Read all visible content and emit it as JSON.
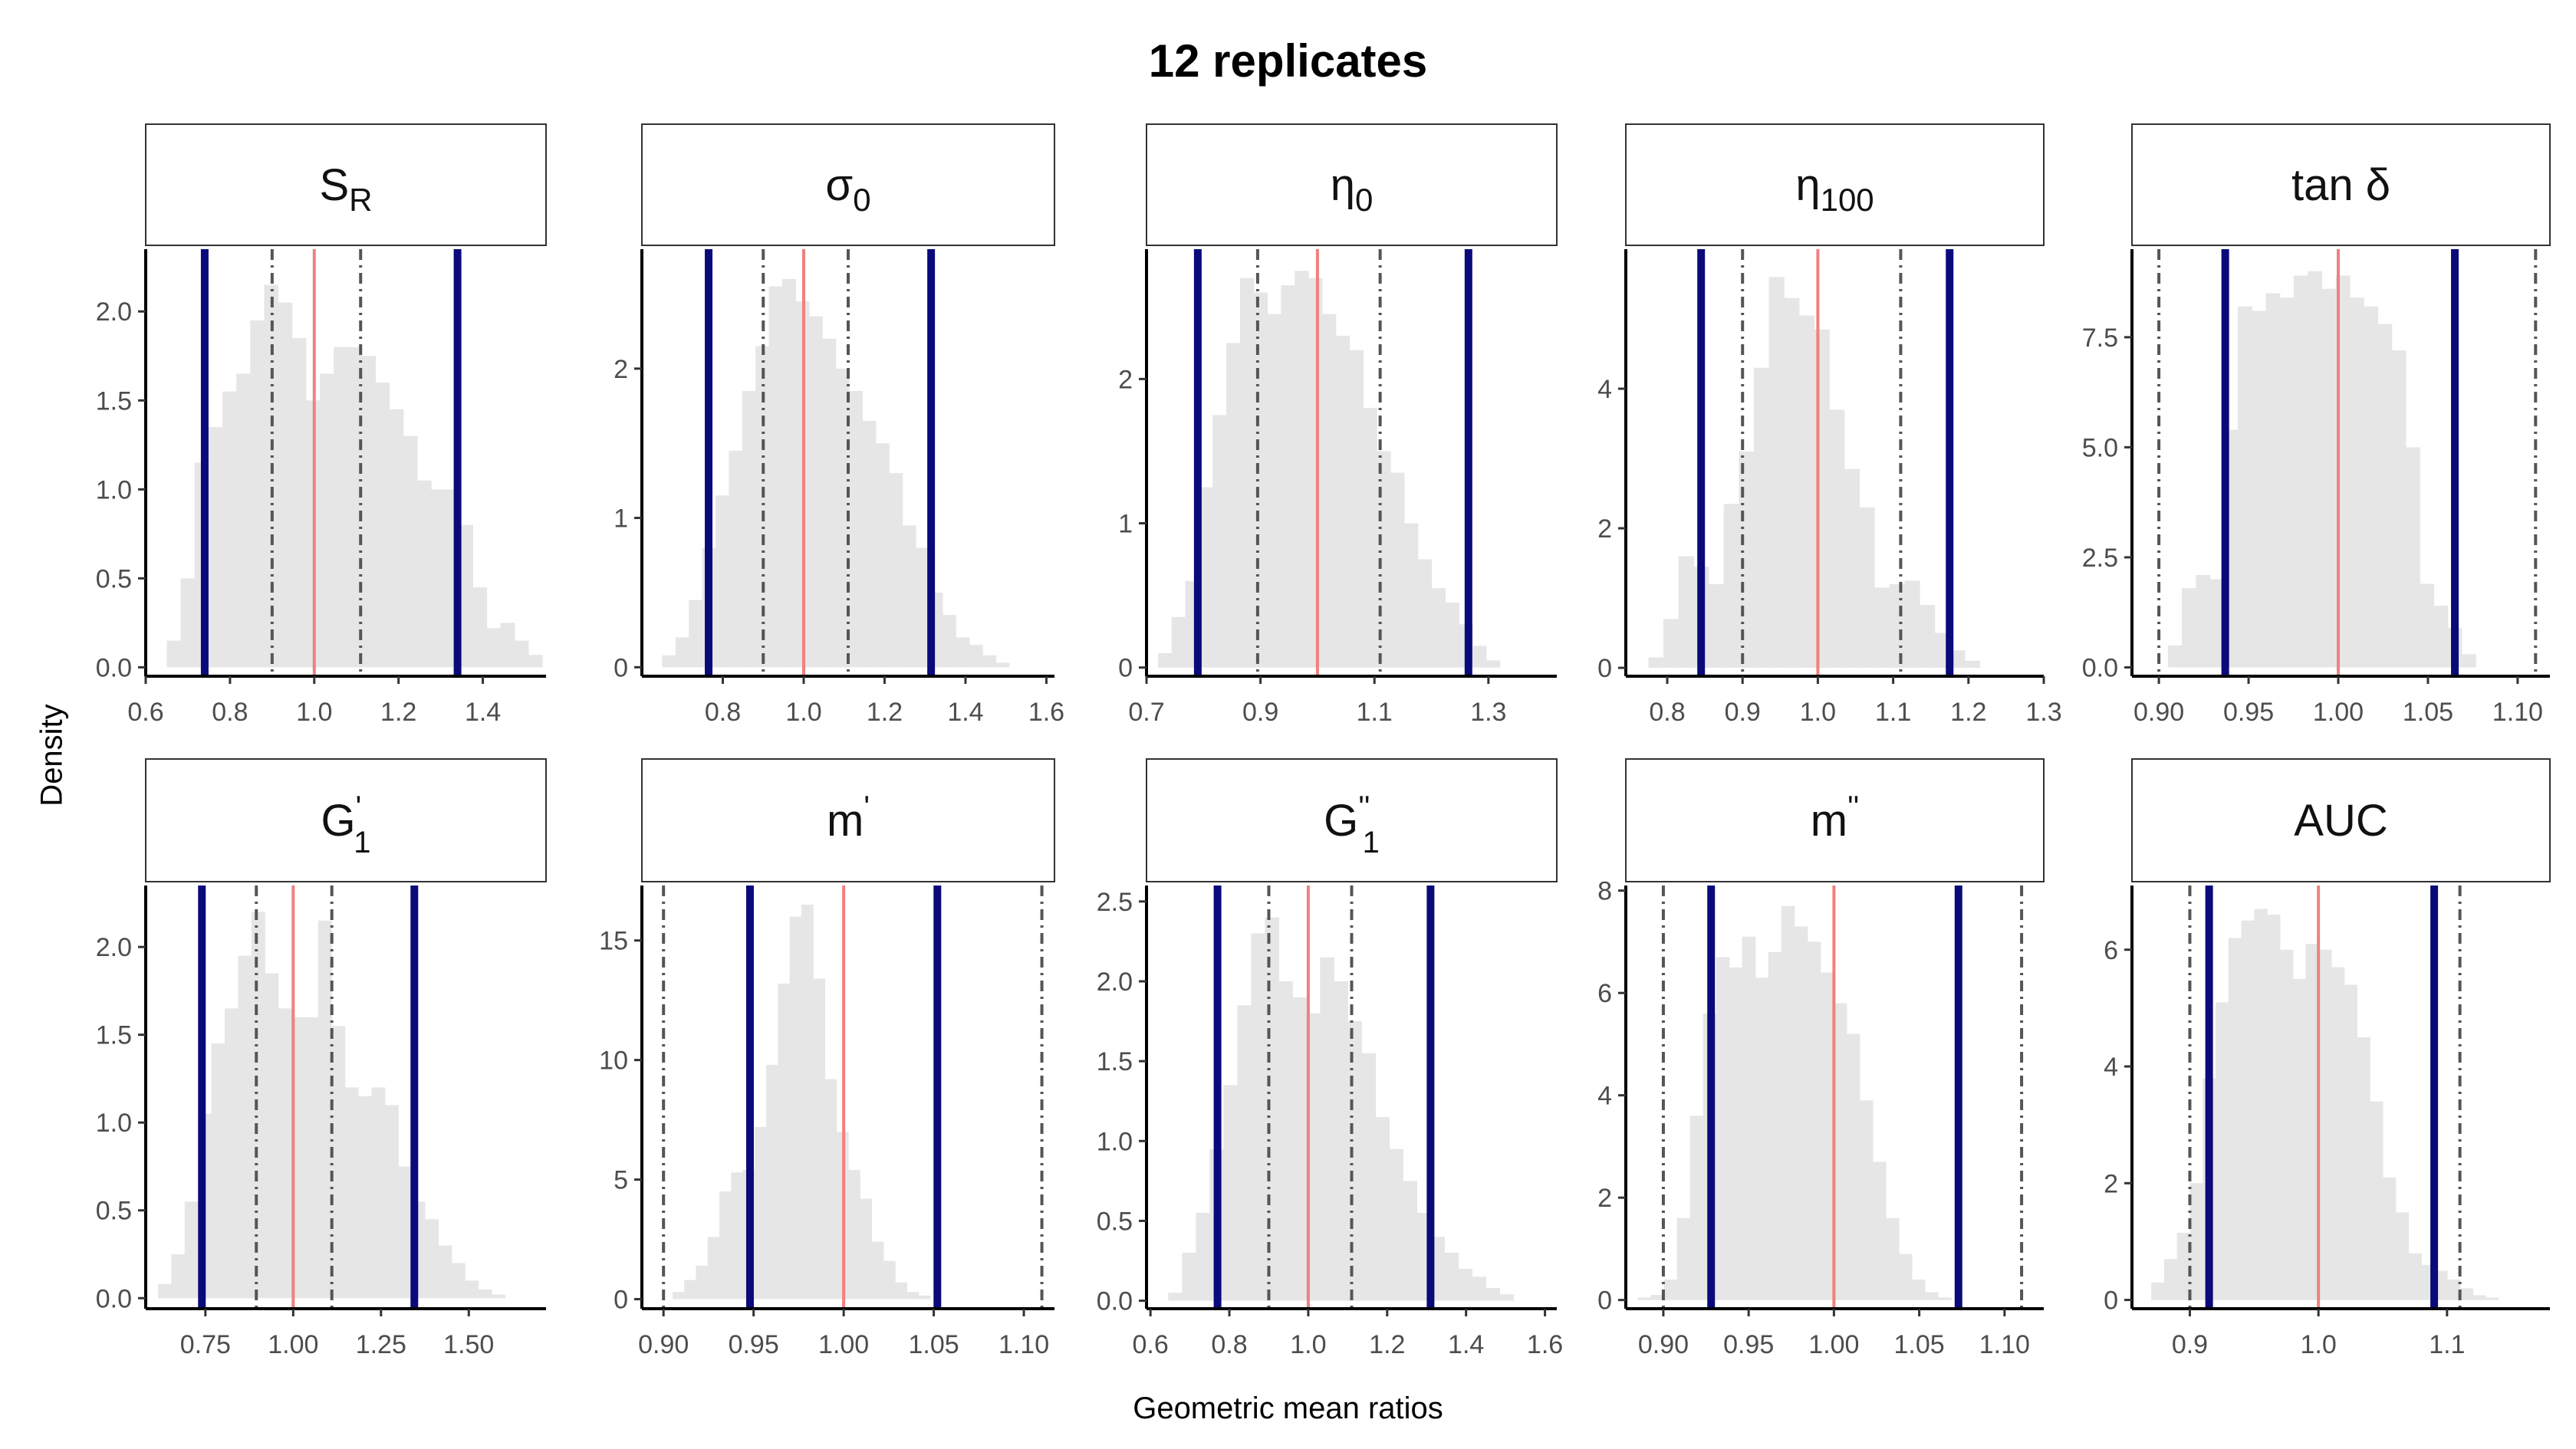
{
  "title": "12 replicates",
  "xlabel": "Geometric mean ratios",
  "ylabel": "Density",
  "colors": {
    "histogram": "#e6e6e6",
    "reference_line": "#f08080",
    "outer_limits": "#0a0a7a",
    "inner_limits": "#555555",
    "strip_fill": "#ffffff",
    "strip_border": "#333333"
  },
  "chart_data": [
    {
      "type": "bar",
      "panel": "S_R",
      "strip": {
        "base": "S",
        "sub": "R",
        "sup": "",
        "kind": "latin"
      },
      "xlim": [
        0.6,
        1.55
      ],
      "ylim": [
        -0.05,
        2.35
      ],
      "xticks": [
        0.6,
        0.8,
        1.0,
        1.2,
        1.4
      ],
      "xtick_labels": [
        "0.6",
        "0.8",
        "1.0",
        "1.2",
        "1.4"
      ],
      "yticks": [
        0.0,
        0.5,
        1.0,
        1.5,
        2.0
      ],
      "ytick_labels": [
        "0.0",
        "0.5",
        "1.0",
        "1.5",
        "2.0"
      ],
      "reference": 1.0,
      "outer": [
        0.74,
        1.34
      ],
      "inner": [
        0.9,
        1.11
      ],
      "hist": {
        "start": 0.65,
        "width": 0.033,
        "values": [
          0.15,
          0.5,
          1.15,
          1.35,
          1.55,
          1.65,
          1.95,
          2.15,
          2.05,
          1.85,
          1.5,
          1.65,
          1.8,
          1.8,
          1.75,
          1.6,
          1.45,
          1.3,
          1.05,
          1.0,
          1.0,
          0.8,
          0.45,
          0.22,
          0.25,
          0.15,
          0.07
        ]
      }
    },
    {
      "type": "bar",
      "panel": "sigma_0",
      "strip": {
        "base": "σ",
        "sub": "0",
        "sup": "",
        "kind": "greek"
      },
      "xlim": [
        0.6,
        1.62
      ],
      "ylim": [
        -0.06,
        2.8
      ],
      "xticks": [
        0.8,
        1.0,
        1.2,
        1.4,
        1.6
      ],
      "xtick_labels": [
        "0.8",
        "1.0",
        "1.2",
        "1.4",
        "1.6"
      ],
      "yticks": [
        0,
        1,
        2
      ],
      "ytick_labels": [
        "0",
        "1",
        "2"
      ],
      "reference": 1.0,
      "outer": [
        0.765,
        1.315
      ],
      "inner": [
        0.9,
        1.11
      ],
      "hist": {
        "start": 0.65,
        "width": 0.033,
        "values": [
          0.08,
          0.2,
          0.45,
          0.8,
          1.15,
          1.45,
          1.85,
          2.15,
          2.55,
          2.6,
          2.45,
          2.35,
          2.2,
          2.0,
          1.85,
          1.65,
          1.5,
          1.3,
          0.95,
          0.8,
          0.5,
          0.35,
          0.2,
          0.15,
          0.08,
          0.03
        ]
      }
    },
    {
      "type": "bar",
      "panel": "eta_0",
      "strip": {
        "base": "η",
        "sub": "0",
        "sup": "",
        "kind": "greek"
      },
      "xlim": [
        0.7,
        1.42
      ],
      "ylim": [
        -0.06,
        2.9
      ],
      "xticks": [
        0.7,
        0.9,
        1.1,
        1.3
      ],
      "xtick_labels": [
        "0.7",
        "0.9",
        "1.1",
        "1.3"
      ],
      "yticks": [
        0,
        1,
        2
      ],
      "ytick_labels": [
        "0",
        "1",
        "2"
      ],
      "reference": 1.0,
      "outer": [
        0.79,
        1.265
      ],
      "inner": [
        0.895,
        1.11
      ],
      "hist": {
        "start": 0.72,
        "width": 0.024,
        "values": [
          0.1,
          0.35,
          0.6,
          1.25,
          1.75,
          2.25,
          2.7,
          2.6,
          2.45,
          2.65,
          2.75,
          2.7,
          2.45,
          2.3,
          2.2,
          1.8,
          1.5,
          1.35,
          1.0,
          0.75,
          0.55,
          0.45,
          0.3,
          0.15,
          0.05
        ]
      }
    },
    {
      "type": "bar",
      "panel": "eta_100",
      "strip": {
        "base": "η",
        "sub": "100",
        "sup": "",
        "kind": "greek"
      },
      "xlim": [
        0.745,
        1.3
      ],
      "ylim": [
        -0.12,
        6.0
      ],
      "xticks": [
        0.8,
        0.9,
        1.0,
        1.1,
        1.2,
        1.3
      ],
      "xtick_labels": [
        "0.8",
        "0.9",
        "1.0",
        "1.1",
        "1.2",
        "1.3"
      ],
      "yticks": [
        0,
        2,
        4
      ],
      "ytick_labels": [
        "0",
        "2",
        "4"
      ],
      "reference": 1.0,
      "outer": [
        0.845,
        1.175
      ],
      "inner": [
        0.9,
        1.11
      ],
      "hist": {
        "start": 0.775,
        "width": 0.02,
        "values": [
          0.15,
          0.7,
          1.6,
          1.45,
          1.2,
          2.35,
          3.1,
          4.3,
          5.6,
          5.3,
          5.05,
          4.85,
          3.7,
          2.85,
          2.3,
          1.15,
          1.2,
          1.25,
          0.9,
          0.5,
          0.25,
          0.1
        ]
      }
    },
    {
      "type": "bar",
      "panel": "tan_delta",
      "strip": {
        "base": "tan δ",
        "sub": "",
        "sup": "",
        "kind": "latin"
      },
      "xlim": [
        0.885,
        1.118
      ],
      "ylim": [
        -0.2,
        9.5
      ],
      "xticks": [
        0.9,
        0.95,
        1.0,
        1.05,
        1.1
      ],
      "xtick_labels": [
        "0.90",
        "0.95",
        "1.00",
        "1.05",
        "1.10"
      ],
      "yticks": [
        0.0,
        2.5,
        5.0,
        7.5
      ],
      "ytick_labels": [
        "0.0",
        "2.5",
        "5.0",
        "7.5"
      ],
      "reference": 1.0,
      "outer": [
        0.937,
        1.065
      ],
      "inner": [
        0.9,
        1.11
      ],
      "hist": {
        "start": 0.905,
        "width": 0.0078,
        "values": [
          0.5,
          1.8,
          2.1,
          2.0,
          5.4,
          8.2,
          8.1,
          8.5,
          8.4,
          8.9,
          9.0,
          8.6,
          8.9,
          8.4,
          8.2,
          7.8,
          7.2,
          5.0,
          1.9,
          1.4,
          0.9,
          0.3
        ]
      }
    },
    {
      "type": "bar",
      "panel": "G1_prime",
      "strip": {
        "base": "G",
        "sub": "1",
        "sup": "'",
        "kind": "latin"
      },
      "xlim": [
        0.58,
        1.72
      ],
      "ylim": [
        -0.06,
        2.35
      ],
      "xticks": [
        0.75,
        1.0,
        1.25,
        1.5
      ],
      "xtick_labels": [
        "0.75",
        "1.00",
        "1.25",
        "1.50"
      ],
      "yticks": [
        0.0,
        0.5,
        1.0,
        1.5,
        2.0
      ],
      "ytick_labels": [
        "0.0",
        "0.5",
        "1.0",
        "1.5",
        "2.0"
      ],
      "reference": 1.0,
      "outer": [
        0.74,
        1.345
      ],
      "inner": [
        0.895,
        1.11
      ],
      "hist": {
        "start": 0.615,
        "width": 0.038,
        "values": [
          0.08,
          0.25,
          0.55,
          1.05,
          1.45,
          1.65,
          1.95,
          2.2,
          1.85,
          1.65,
          1.6,
          1.6,
          2.15,
          1.55,
          1.2,
          1.15,
          1.2,
          1.1,
          0.75,
          0.55,
          0.45,
          0.3,
          0.2,
          0.1,
          0.05,
          0.02
        ]
      }
    },
    {
      "type": "bar",
      "panel": "m_prime",
      "strip": {
        "base": "m",
        "sub": "",
        "sup": "'",
        "kind": "latin"
      },
      "xlim": [
        0.888,
        1.117
      ],
      "ylim": [
        -0.4,
        17.3
      ],
      "xticks": [
        0.9,
        0.95,
        1.0,
        1.05,
        1.1
      ],
      "xtick_labels": [
        "0.90",
        "0.95",
        "1.00",
        "1.05",
        "1.10"
      ],
      "yticks": [
        0,
        5,
        10,
        15
      ],
      "ytick_labels": [
        "0",
        "5",
        "10",
        "15"
      ],
      "reference": 1.0,
      "outer": [
        0.948,
        1.052
      ],
      "inner": [
        0.9,
        1.11
      ],
      "hist": {
        "start": 0.905,
        "width": 0.0065,
        "values": [
          0.3,
          0.8,
          1.4,
          2.6,
          4.5,
          5.3,
          5.4,
          7.2,
          9.8,
          13.2,
          16.0,
          16.5,
          13.4,
          9.2,
          7.0,
          5.4,
          4.2,
          2.4,
          1.6,
          0.7,
          0.3,
          0.15
        ]
      }
    },
    {
      "type": "bar",
      "panel": "G1_double_prime",
      "strip": {
        "base": "G",
        "sub": "1",
        "sup": "''",
        "kind": "latin"
      },
      "xlim": [
        0.59,
        1.63
      ],
      "ylim": [
        -0.05,
        2.6
      ],
      "xticks": [
        0.6,
        0.8,
        1.0,
        1.2,
        1.4,
        1.6
      ],
      "xtick_labels": [
        "0.6",
        "0.8",
        "1.0",
        "1.2",
        "1.4",
        "1.6"
      ],
      "yticks": [
        0.0,
        0.5,
        1.0,
        1.5,
        2.0,
        2.5
      ],
      "ytick_labels": [
        "0.0",
        "0.5",
        "1.0",
        "1.5",
        "2.0",
        "2.5"
      ],
      "reference": 1.0,
      "outer": [
        0.77,
        1.31
      ],
      "inner": [
        0.9,
        1.11
      ],
      "hist": {
        "start": 0.645,
        "width": 0.035,
        "values": [
          0.05,
          0.3,
          0.55,
          0.95,
          1.35,
          1.85,
          2.3,
          2.4,
          2.0,
          1.9,
          1.8,
          2.15,
          2.0,
          1.75,
          1.55,
          1.15,
          0.95,
          0.75,
          0.55,
          0.4,
          0.3,
          0.2,
          0.15,
          0.08,
          0.04
        ]
      }
    },
    {
      "type": "bar",
      "panel": "m_double_prime",
      "strip": {
        "base": "m",
        "sub": "",
        "sup": "''",
        "kind": "latin"
      },
      "xlim": [
        0.878,
        1.123
      ],
      "ylim": [
        -0.17,
        8.1
      ],
      "xticks": [
        0.9,
        0.95,
        1.0,
        1.05,
        1.1
      ],
      "xtick_labels": [
        "0.90",
        "0.95",
        "1.00",
        "1.05",
        "1.10"
      ],
      "yticks": [
        0,
        2,
        4,
        6,
        8
      ],
      "ytick_labels": [
        "0",
        "2",
        "4",
        "6",
        "8"
      ],
      "reference": 1.0,
      "outer": [
        0.928,
        1.073
      ],
      "inner": [
        0.9,
        1.11
      ],
      "hist": {
        "start": 0.885,
        "width": 0.00765,
        "values": [
          0.05,
          0.1,
          0.4,
          1.6,
          3.6,
          5.6,
          6.7,
          6.5,
          7.1,
          6.3,
          6.8,
          7.7,
          7.3,
          7.0,
          6.4,
          5.8,
          5.2,
          3.9,
          2.7,
          1.6,
          0.9,
          0.4,
          0.15,
          0.05
        ]
      }
    },
    {
      "type": "bar",
      "panel": "AUC",
      "strip": {
        "base": "AUC",
        "sub": "",
        "sup": "",
        "kind": "latin"
      },
      "xlim": [
        0.855,
        1.18
      ],
      "ylim": [
        -0.15,
        7.1
      ],
      "xticks": [
        0.9,
        1.0,
        1.1
      ],
      "xtick_labels": [
        "0.9",
        "1.0",
        "1.1"
      ],
      "yticks": [
        0,
        2,
        4,
        6
      ],
      "ytick_labels": [
        "0",
        "2",
        "4",
        "6"
      ],
      "reference": 1.0,
      "outer": [
        0.915,
        1.09
      ],
      "inner": [
        0.9,
        1.11
      ],
      "hist": {
        "start": 0.87,
        "width": 0.01,
        "values": [
          0.3,
          0.7,
          1.15,
          2.0,
          3.8,
          5.1,
          6.2,
          6.5,
          6.7,
          6.6,
          6.0,
          5.5,
          6.1,
          6.0,
          5.7,
          5.4,
          4.5,
          3.4,
          2.1,
          1.5,
          0.8,
          0.6,
          0.5,
          0.35,
          0.2,
          0.08,
          0.04
        ]
      }
    }
  ]
}
